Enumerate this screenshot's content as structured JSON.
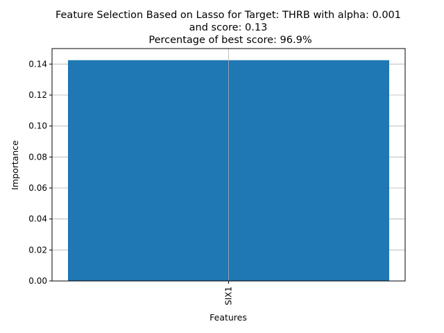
{
  "chart_data": {
    "type": "bar",
    "title_lines": [
      "Feature Selection Based on Lasso for Target: THRB with alpha: 0.001",
      "and score: 0.13",
      "Percentage of best score: 96.9%"
    ],
    "categories": [
      "SIX1"
    ],
    "values": [
      0.1425
    ],
    "xlabel": "Features",
    "ylabel": "Importance",
    "ylim": [
      0,
      0.15
    ],
    "yticks": [
      0.0,
      0.02,
      0.04,
      0.06,
      0.08,
      0.1,
      0.12,
      0.14
    ],
    "ytick_labels": [
      "0.00",
      "0.02",
      "0.04",
      "0.06",
      "0.08",
      "0.10",
      "0.12",
      "0.14"
    ],
    "grid": true,
    "x_tick_rotation": "vertical",
    "bar_color": "#1f77b4",
    "grid_color": "#b0b0b0"
  }
}
